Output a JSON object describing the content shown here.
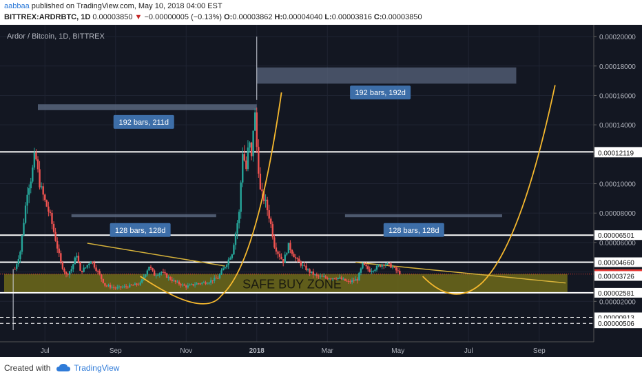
{
  "header": {
    "author": "aabbaa",
    "published": "published on TradingView.com, May 10, 2018 04:00 EST",
    "symbol": "BITTREX:ARDRBTC, 1D",
    "last": "0.00003850",
    "change_glyph": "▼",
    "change": "−0.00000005 (−0.13%)",
    "o_label": "O:",
    "o": "0.00003862",
    "h_label": "H:",
    "h": "0.00004040",
    "l_label": "L:",
    "l": "0.00003816",
    "c_label": "C:",
    "c": "0.00003850"
  },
  "footer": {
    "created_with": "Created with",
    "brand": "TradingView"
  },
  "chart_data": {
    "type": "candlestick",
    "title": "Ardor / Bitcoin, 1D, BITTREX",
    "x_ticks": [
      {
        "label": "Jul",
        "t": 1
      },
      {
        "label": "Sep",
        "t": 3
      },
      {
        "label": "Nov",
        "t": 5
      },
      {
        "label": "2018",
        "t": 7
      },
      {
        "label": "Mar",
        "t": 9
      },
      {
        "label": "May",
        "t": 11
      },
      {
        "label": "Jul",
        "t": 13
      },
      {
        "label": "Sep",
        "t": 15
      }
    ],
    "y_ticks": [
      0.0002,
      0.00018,
      0.00016,
      0.00014,
      0.00012,
      0.0001,
      8e-05,
      6e-05,
      4e-05,
      2e-05
    ],
    "y_tick_labels": [
      "0.00020000",
      "0.00018000",
      "0.00016000",
      "0.00014000",
      "0.00012000",
      "0.00010000",
      "0.00008000",
      "0.00006000",
      "0.00004000",
      "0.00002000"
    ],
    "ylim": [
      -7.5e-06,
      0.000208
    ],
    "price_close_trace": [
      [
        0.15,
        4.2e-05
      ],
      [
        0.3,
        5.4e-05
      ],
      [
        0.5,
        9.5e-05
      ],
      [
        0.62,
        0.000105
      ],
      [
        0.72,
        0.000121
      ],
      [
        0.85,
        0.0001
      ],
      [
        1.0,
        8.8e-05
      ],
      [
        1.15,
        7.8e-05
      ],
      [
        1.3,
        6.2e-05
      ],
      [
        1.45,
        4.6e-05
      ],
      [
        1.6,
        3.8e-05
      ],
      [
        1.75,
        4.2e-05
      ],
      [
        1.9,
        5.2e-05
      ],
      [
        2.0,
        4e-05
      ],
      [
        2.15,
        4.3e-05
      ],
      [
        2.3,
        4.8e-05
      ],
      [
        2.5,
        4e-05
      ],
      [
        2.7,
        3.1e-05
      ],
      [
        3.0,
        2.9e-05
      ],
      [
        3.3,
        3e-05
      ],
      [
        3.7,
        3.2e-05
      ],
      [
        3.95,
        4.4e-05
      ],
      [
        4.1,
        3.8e-05
      ],
      [
        4.3,
        4e-05
      ],
      [
        4.5,
        3.6e-05
      ],
      [
        4.7,
        3.3e-05
      ],
      [
        5.0,
        3e-05
      ],
      [
        5.3,
        3.2e-05
      ],
      [
        5.6,
        3.3e-05
      ],
      [
        5.9,
        3.6e-05
      ],
      [
        6.15,
        4.6e-05
      ],
      [
        6.3,
        5.3e-05
      ],
      [
        6.5,
        8e-05
      ],
      [
        6.6,
        0.000122
      ],
      [
        6.7,
        0.00011
      ],
      [
        6.78,
        0.00013
      ],
      [
        6.86,
        0.000115
      ],
      [
        6.93,
        0.000155
      ],
      [
        7.0,
        0.000125
      ],
      [
        7.1,
        9.5e-05
      ],
      [
        7.25,
        8.7e-05
      ],
      [
        7.38,
        7.5e-05
      ],
      [
        7.5,
        5.8e-05
      ],
      [
        7.6,
        5.3e-05
      ],
      [
        7.75,
        4.7e-05
      ],
      [
        7.9,
        5.8e-05
      ],
      [
        8.1,
        4.9e-05
      ],
      [
        8.3,
        4.4e-05
      ],
      [
        8.5,
        4e-05
      ],
      [
        8.7,
        3.7e-05
      ],
      [
        9.0,
        3.6e-05
      ],
      [
        9.3,
        3.6e-05
      ],
      [
        9.6,
        3.3e-05
      ],
      [
        9.85,
        3.5e-05
      ],
      [
        10.0,
        4.5e-05
      ],
      [
        10.2,
        4.1e-05
      ],
      [
        10.4,
        4.3e-05
      ],
      [
        10.6,
        4.6e-05
      ],
      [
        10.8,
        4.4e-05
      ],
      [
        10.95,
        4.1e-05
      ],
      [
        11.1,
        3.85e-05
      ]
    ],
    "horizontal_levels": [
      {
        "value": 0.00012161,
        "label": "0.00012161"
      },
      {
        "value": 0.00012119,
        "label": "0.00012119"
      },
      {
        "value": 6.501e-05,
        "label": "0.00006501"
      },
      {
        "value": 4.66e-05,
        "label": "0.00004660"
      },
      {
        "value": 3.85e-05,
        "label": "0.00003850",
        "current": true
      },
      {
        "value": 3.726e-05,
        "label": "0.00003726"
      },
      {
        "value": 2.581e-05,
        "label": "0.00002581"
      },
      {
        "value": 9.13e-06,
        "label": "0.00000913"
      },
      {
        "value": 5.06e-06,
        "label": "0.00000506"
      }
    ],
    "annotations": [
      {
        "text": "192 bars, 211d",
        "t": 3.8,
        "value": 0.000142
      },
      {
        "text": "192 bars, 192d",
        "t": 10.5,
        "value": 0.000162
      },
      {
        "text": "128 bars, 128d",
        "t": 3.7,
        "value": 6.85e-05
      },
      {
        "text": "128 bars, 128d",
        "t": 11.45,
        "value": 6.85e-05
      }
    ],
    "zone_label": "SAFE BUY ZONE",
    "zone_range": [
      2.581e-05,
      3.85e-05
    ],
    "colors": {
      "background": "#131722",
      "up": "#26a69a",
      "down": "#ef5350",
      "zone": "#6e6a1a",
      "curve": "#f5b82e",
      "level": "#ffffff",
      "price": "#e53935",
      "annotation": "#3d6ea8"
    }
  }
}
